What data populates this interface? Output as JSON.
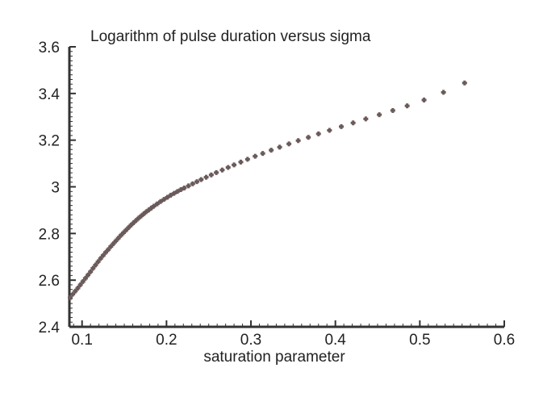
{
  "chart_data": {
    "type": "scatter",
    "title": "Logarithm of pulse duration versus sigma",
    "xlabel": "saturation parameter",
    "ylabel": "",
    "xlim": [
      0.085,
      0.6
    ],
    "ylim": [
      2.4,
      3.6
    ],
    "x_ticks": [
      0.1,
      0.2,
      0.3,
      0.4,
      0.5,
      0.6
    ],
    "x_tick_labels": [
      "0.1",
      "0.2",
      "0.3",
      "0.4",
      "0.5",
      "0.6"
    ],
    "y_ticks": [
      2.4,
      2.6,
      2.8,
      3.0,
      3.2,
      3.4,
      3.6
    ],
    "y_tick_labels": [
      "2.4",
      "2.6",
      "2.8",
      "3",
      "3.2",
      "3.4",
      "3.6"
    ],
    "grid": false,
    "marker_color": "#6b5a5a",
    "series": [
      {
        "x": [
          0.086,
          0.089,
          0.092,
          0.095,
          0.098,
          0.101,
          0.104,
          0.107,
          0.11,
          0.113,
          0.116,
          0.119,
          0.122,
          0.125,
          0.128,
          0.131,
          0.134,
          0.137,
          0.14,
          0.143,
          0.146,
          0.149,
          0.152,
          0.155,
          0.158,
          0.161,
          0.164,
          0.167,
          0.17,
          0.173,
          0.176,
          0.179,
          0.182,
          0.185,
          0.189,
          0.193,
          0.197,
          0.201,
          0.205,
          0.209,
          0.213,
          0.217,
          0.221,
          0.226,
          0.231,
          0.236,
          0.241,
          0.247,
          0.253,
          0.259,
          0.266,
          0.273,
          0.28,
          0.288,
          0.296,
          0.305,
          0.314,
          0.324,
          0.334,
          0.345,
          0.356,
          0.368,
          0.38,
          0.393,
          0.407,
          0.421,
          0.436,
          0.452,
          0.468,
          0.485,
          0.505,
          0.528,
          0.553
        ],
        "y": [
          2.525,
          2.54,
          2.553,
          2.566,
          2.58,
          2.594,
          2.608,
          2.622,
          2.636,
          2.651,
          2.665,
          2.679,
          2.693,
          2.706,
          2.719,
          2.731,
          2.744,
          2.756,
          2.768,
          2.78,
          2.792,
          2.803,
          2.814,
          2.825,
          2.836,
          2.846,
          2.856,
          2.866,
          2.875,
          2.884,
          2.893,
          2.901,
          2.909,
          2.917,
          2.927,
          2.937,
          2.946,
          2.955,
          2.964,
          2.972,
          2.98,
          2.988,
          2.995,
          3.004,
          3.013,
          3.022,
          3.031,
          3.041,
          3.051,
          3.061,
          3.072,
          3.083,
          3.094,
          3.106,
          3.118,
          3.131,
          3.143,
          3.157,
          3.17,
          3.184,
          3.198,
          3.212,
          3.227,
          3.242,
          3.258,
          3.274,
          3.291,
          3.309,
          3.327,
          3.347,
          3.372,
          3.405,
          3.445
        ]
      }
    ]
  }
}
